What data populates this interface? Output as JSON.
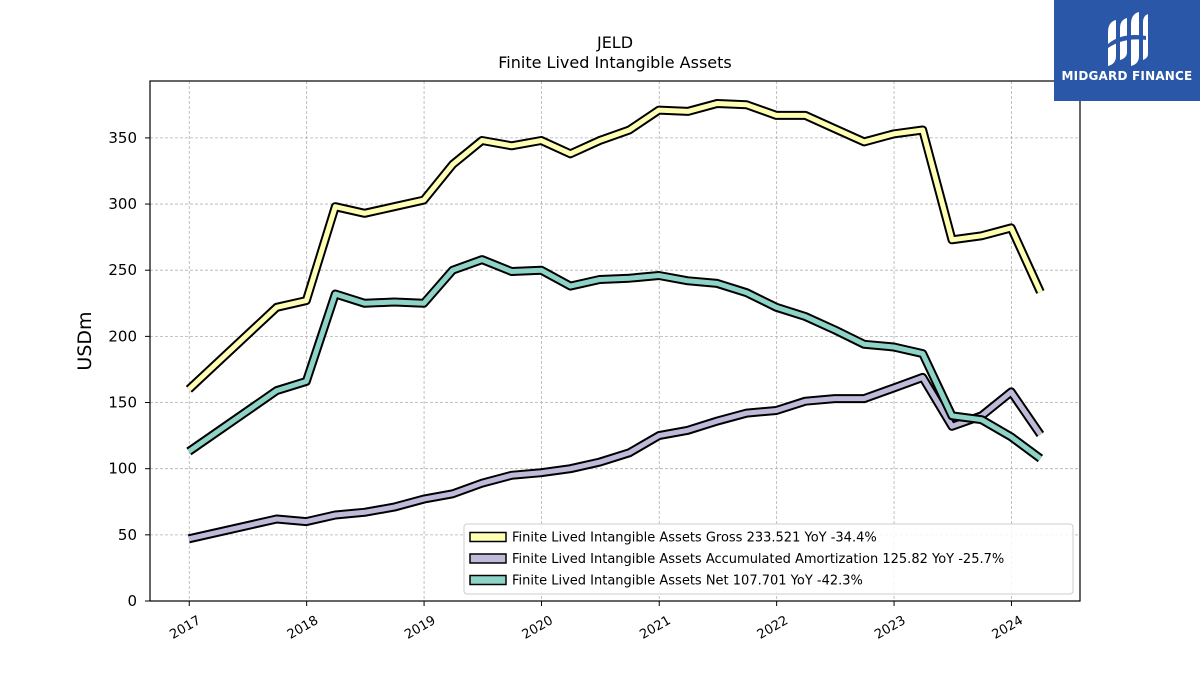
{
  "brand": {
    "name": "MIDGARD FINANCE",
    "icon": "midgard-m-logo-icon",
    "color": "#2a57a8"
  },
  "chart_data": {
    "type": "line",
    "title": "JELD",
    "subtitle": "Finite Lived Intangible Assets",
    "ylabel": "USDm",
    "xlabel": "",
    "ylim": [
      0,
      393
    ],
    "yticks": [
      0,
      50,
      100,
      150,
      200,
      250,
      300,
      350
    ],
    "xticks": [
      "2017",
      "2018",
      "2019",
      "2020",
      "2021",
      "2022",
      "2023",
      "2024"
    ],
    "grid": true,
    "legend_position": "lower-right",
    "x": [
      "2016-12-31",
      "2017-09-30",
      "2017-12-31",
      "2018-03-31",
      "2018-06-30",
      "2018-09-30",
      "2018-12-31",
      "2019-03-31",
      "2019-06-30",
      "2019-09-30",
      "2019-12-31",
      "2020-03-31",
      "2020-06-30",
      "2020-09-30",
      "2020-12-31",
      "2021-03-31",
      "2021-06-30",
      "2021-09-30",
      "2021-12-31",
      "2022-03-31",
      "2022-06-30",
      "2022-09-30",
      "2022-12-31",
      "2023-03-31",
      "2023-06-30",
      "2023-09-30",
      "2023-12-31",
      "2024-03-31"
    ],
    "series": [
      {
        "name": "Finite Lived Intangible Assets Gross",
        "legend_label": "Finite Lived Intangible Assets Gross  233.521 YoY -34.4%",
        "color": "#ffffb3",
        "values": [
          160,
          222,
          227,
          298,
          293,
          298,
          303,
          330,
          348,
          344,
          348,
          338,
          348,
          356,
          371,
          370,
          376,
          375,
          367,
          367,
          357,
          347,
          353,
          356,
          273,
          276,
          282,
          233.521
        ]
      },
      {
        "name": "Finite Lived Intangible Assets Accumulated Amortization",
        "legend_label": "Finite Lived Intangible Assets Accumulated Amortization  125.82 YoY -25.7%",
        "color": "#bebada",
        "values": [
          47,
          62,
          60,
          65,
          67,
          71,
          77,
          81,
          89,
          95,
          97,
          100,
          105,
          112,
          125,
          129,
          136,
          142,
          144,
          151,
          153,
          153,
          161,
          169,
          132,
          140,
          158,
          125.82
        ]
      },
      {
        "name": "Finite Lived Intangible Assets Net",
        "legend_label": "Finite Lived Intangible Assets Net  107.701 YoY -42.3%",
        "color": "#8dd3c7",
        "values": [
          113,
          159,
          166,
          232,
          225,
          226,
          225,
          250,
          258,
          249,
          250,
          238,
          243,
          244,
          246,
          242,
          240,
          233,
          222,
          215,
          205,
          194,
          192,
          187,
          140,
          137,
          124,
          107.701
        ]
      }
    ]
  }
}
